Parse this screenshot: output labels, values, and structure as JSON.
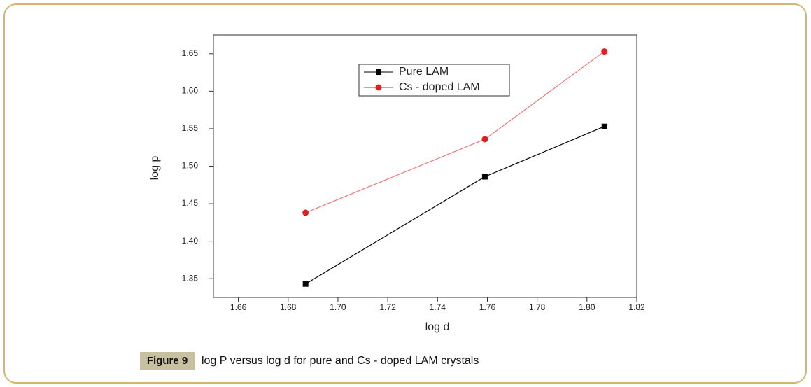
{
  "chart_data": {
    "type": "line",
    "x_label": "log d",
    "y_label": "log p",
    "x": [
      1.687,
      1.759,
      1.807
    ],
    "series": [
      {
        "name": "Pure LAM",
        "color": "#000000",
        "marker": "square",
        "values": [
          1.343,
          1.486,
          1.553
        ]
      },
      {
        "name": "Cs - doped LAM",
        "color": "#e02020",
        "marker": "circle",
        "values": [
          1.438,
          1.536,
          1.653
        ]
      }
    ],
    "xlim": [
      1.65,
      1.82
    ],
    "xticks": [
      1.66,
      1.68,
      {
        "value": 1.7,
        "label": "1.70"
      },
      1.72,
      1.74,
      1.76,
      1.78,
      {
        "value": 1.8,
        "label": "1.80"
      },
      1.82
    ],
    "ylim": [
      1.325,
      1.675
    ],
    "yticks": [
      1.35,
      {
        "value": 1.4,
        "label": "1.40"
      },
      1.45,
      {
        "value": 1.5,
        "label": "1.50"
      },
      1.55,
      {
        "value": 1.6,
        "label": "1.60"
      },
      1.65
    ],
    "legend": "upper center"
  },
  "caption": {
    "label": "Figure 9",
    "text": "log P versus log d for pure and Cs - doped LAM crystals"
  }
}
